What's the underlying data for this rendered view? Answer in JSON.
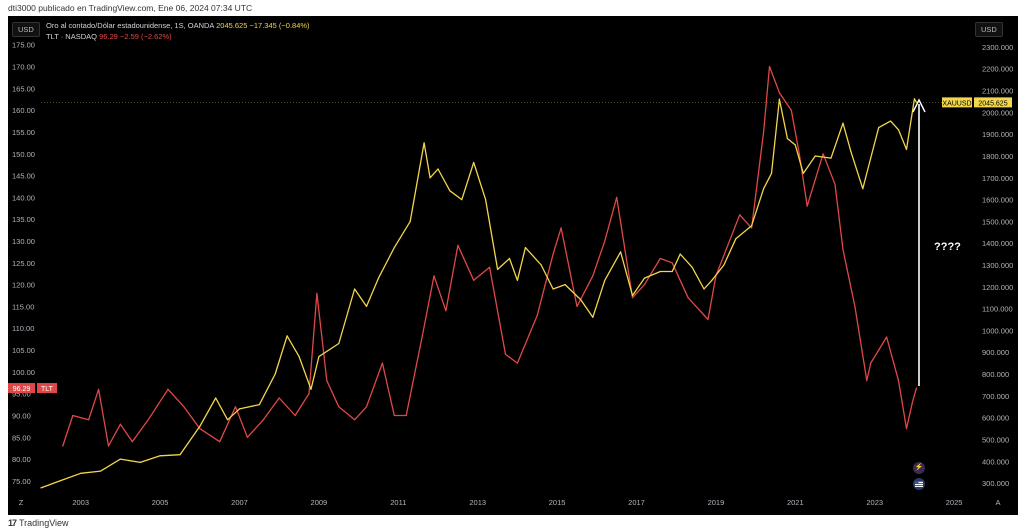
{
  "publisher": {
    "text": "dti3000 publicado en TradingView.com, Ene 06, 2024 07:34 UTC"
  },
  "legend": {
    "gold_name": "Oro al contado/Dólar estadounidense, 1S, OANDA",
    "gold_price": "2045.625",
    "gold_change": "−17.345 (−0.84%)",
    "tlt_name": "TLT · NASDAQ",
    "tlt_price": "96.29",
    "tlt_change": "−2.59 (−2.62%)"
  },
  "currency_left": "USD",
  "currency_right": "USD",
  "footer": {
    "logo": "17",
    "brand": "TradingView"
  },
  "annotation": "????",
  "colors": {
    "gold": "#f2d64b",
    "tlt": "#e04848",
    "background": "#000000",
    "arrow": "#ffffff"
  },
  "icons": {
    "z_icon": "Z",
    "a_icon": "A",
    "lightning-icon": "⚡",
    "flag-icon": "flag"
  },
  "chart_data": {
    "type": "line",
    "xlabel": "",
    "ylabel": "",
    "x_ticks": [
      "2003",
      "2005",
      "2007",
      "2009",
      "2011",
      "2013",
      "2015",
      "2017",
      "2019",
      "2021",
      "2023",
      "2025"
    ],
    "left_axis": {
      "ticks": [
        "75.00",
        "80.00",
        "85.00",
        "90.00",
        "95.00",
        "100.00",
        "105.00",
        "110.00",
        "115.00",
        "120.00",
        "125.00",
        "130.00",
        "135.00",
        "140.00",
        "145.00",
        "150.00",
        "155.00",
        "160.00",
        "165.00",
        "170.00",
        "175.00"
      ],
      "range": [
        72,
        177
      ]
    },
    "right_axis": {
      "ticks": [
        "300.000",
        "400.000",
        "500.000",
        "600.000",
        "700.000",
        "800.000",
        "900.000",
        "1000.000",
        "1100.000",
        "1200.000",
        "1300.000",
        "1400.000",
        "1500.000",
        "1600.000",
        "1700.000",
        "1800.000",
        "1900.000",
        "2000.000",
        "2100.000",
        "2200.000",
        "2300.000"
      ],
      "range": [
        250,
        2350
      ]
    },
    "x_range": [
      2002.0,
      2025.4
    ],
    "series": [
      {
        "name": "XAUUSD",
        "axis": "right",
        "last_label": "XAUUSD",
        "last_value": "2045.625",
        "points": [
          [
            2002.0,
            278
          ],
          [
            2002.5,
            312
          ],
          [
            2003.0,
            345
          ],
          [
            2003.5,
            355
          ],
          [
            2004.0,
            410
          ],
          [
            2004.5,
            395
          ],
          [
            2005.0,
            425
          ],
          [
            2005.5,
            430
          ],
          [
            2006.0,
            560
          ],
          [
            2006.4,
            690
          ],
          [
            2006.7,
            590
          ],
          [
            2007.0,
            640
          ],
          [
            2007.5,
            660
          ],
          [
            2007.9,
            800
          ],
          [
            2008.2,
            975
          ],
          [
            2008.5,
            880
          ],
          [
            2008.8,
            730
          ],
          [
            2009.0,
            880
          ],
          [
            2009.5,
            940
          ],
          [
            2009.9,
            1190
          ],
          [
            2010.2,
            1110
          ],
          [
            2010.5,
            1240
          ],
          [
            2010.9,
            1380
          ],
          [
            2011.3,
            1500
          ],
          [
            2011.65,
            1860
          ],
          [
            2011.8,
            1700
          ],
          [
            2012.0,
            1740
          ],
          [
            2012.3,
            1640
          ],
          [
            2012.6,
            1600
          ],
          [
            2012.9,
            1770
          ],
          [
            2013.2,
            1600
          ],
          [
            2013.5,
            1280
          ],
          [
            2013.8,
            1330
          ],
          [
            2014.0,
            1230
          ],
          [
            2014.2,
            1380
          ],
          [
            2014.6,
            1300
          ],
          [
            2014.9,
            1190
          ],
          [
            2015.2,
            1210
          ],
          [
            2015.6,
            1140
          ],
          [
            2015.9,
            1060
          ],
          [
            2016.2,
            1230
          ],
          [
            2016.6,
            1360
          ],
          [
            2016.9,
            1160
          ],
          [
            2017.2,
            1240
          ],
          [
            2017.6,
            1270
          ],
          [
            2017.9,
            1270
          ],
          [
            2018.1,
            1350
          ],
          [
            2018.4,
            1290
          ],
          [
            2018.7,
            1190
          ],
          [
            2018.9,
            1230
          ],
          [
            2019.2,
            1300
          ],
          [
            2019.5,
            1420
          ],
          [
            2019.9,
            1480
          ],
          [
            2020.2,
            1650
          ],
          [
            2020.4,
            1720
          ],
          [
            2020.6,
            2060
          ],
          [
            2020.8,
            1880
          ],
          [
            2021.0,
            1850
          ],
          [
            2021.2,
            1720
          ],
          [
            2021.5,
            1800
          ],
          [
            2021.9,
            1790
          ],
          [
            2022.2,
            1950
          ],
          [
            2022.4,
            1820
          ],
          [
            2022.7,
            1650
          ],
          [
            2022.9,
            1790
          ],
          [
            2023.1,
            1930
          ],
          [
            2023.4,
            1960
          ],
          [
            2023.6,
            1920
          ],
          [
            2023.8,
            1830
          ],
          [
            2024.0,
            2062
          ],
          [
            2024.05,
            2046
          ]
        ]
      },
      {
        "name": "TLT",
        "axis": "left",
        "last_label": "TLT",
        "last_value": "96.29",
        "points": [
          [
            2002.55,
            83
          ],
          [
            2002.8,
            90
          ],
          [
            2003.2,
            89
          ],
          [
            2003.45,
            96
          ],
          [
            2003.7,
            83
          ],
          [
            2004.0,
            88
          ],
          [
            2004.3,
            84
          ],
          [
            2004.7,
            89
          ],
          [
            2005.2,
            96
          ],
          [
            2005.6,
            92
          ],
          [
            2006.0,
            87
          ],
          [
            2006.5,
            84
          ],
          [
            2006.9,
            92
          ],
          [
            2007.2,
            85
          ],
          [
            2007.6,
            89
          ],
          [
            2008.0,
            94
          ],
          [
            2008.4,
            90
          ],
          [
            2008.75,
            95
          ],
          [
            2008.95,
            118
          ],
          [
            2009.2,
            98
          ],
          [
            2009.5,
            92
          ],
          [
            2009.9,
            89
          ],
          [
            2010.2,
            92
          ],
          [
            2010.6,
            102
          ],
          [
            2010.9,
            90
          ],
          [
            2011.2,
            90
          ],
          [
            2011.6,
            108
          ],
          [
            2011.9,
            122
          ],
          [
            2012.2,
            114
          ],
          [
            2012.5,
            129
          ],
          [
            2012.9,
            121
          ],
          [
            2013.3,
            124
          ],
          [
            2013.7,
            104
          ],
          [
            2014.0,
            102
          ],
          [
            2014.5,
            113
          ],
          [
            2014.9,
            127
          ],
          [
            2015.1,
            133
          ],
          [
            2015.5,
            115
          ],
          [
            2015.9,
            122
          ],
          [
            2016.2,
            130
          ],
          [
            2016.5,
            140
          ],
          [
            2016.9,
            117
          ],
          [
            2017.2,
            120
          ],
          [
            2017.6,
            126
          ],
          [
            2017.9,
            125
          ],
          [
            2018.3,
            117
          ],
          [
            2018.8,
            112
          ],
          [
            2019.0,
            122
          ],
          [
            2019.6,
            136
          ],
          [
            2019.9,
            133
          ],
          [
            2020.2,
            155
          ],
          [
            2020.35,
            170
          ],
          [
            2020.6,
            164
          ],
          [
            2020.9,
            160
          ],
          [
            2021.1,
            150
          ],
          [
            2021.3,
            138
          ],
          [
            2021.7,
            150
          ],
          [
            2022.0,
            143
          ],
          [
            2022.2,
            128
          ],
          [
            2022.5,
            115
          ],
          [
            2022.8,
            98
          ],
          [
            2022.9,
            102
          ],
          [
            2023.1,
            105
          ],
          [
            2023.3,
            108
          ],
          [
            2023.6,
            98
          ],
          [
            2023.8,
            87
          ],
          [
            2023.95,
            93
          ],
          [
            2024.05,
            96.29
          ]
        ]
      }
    ]
  }
}
